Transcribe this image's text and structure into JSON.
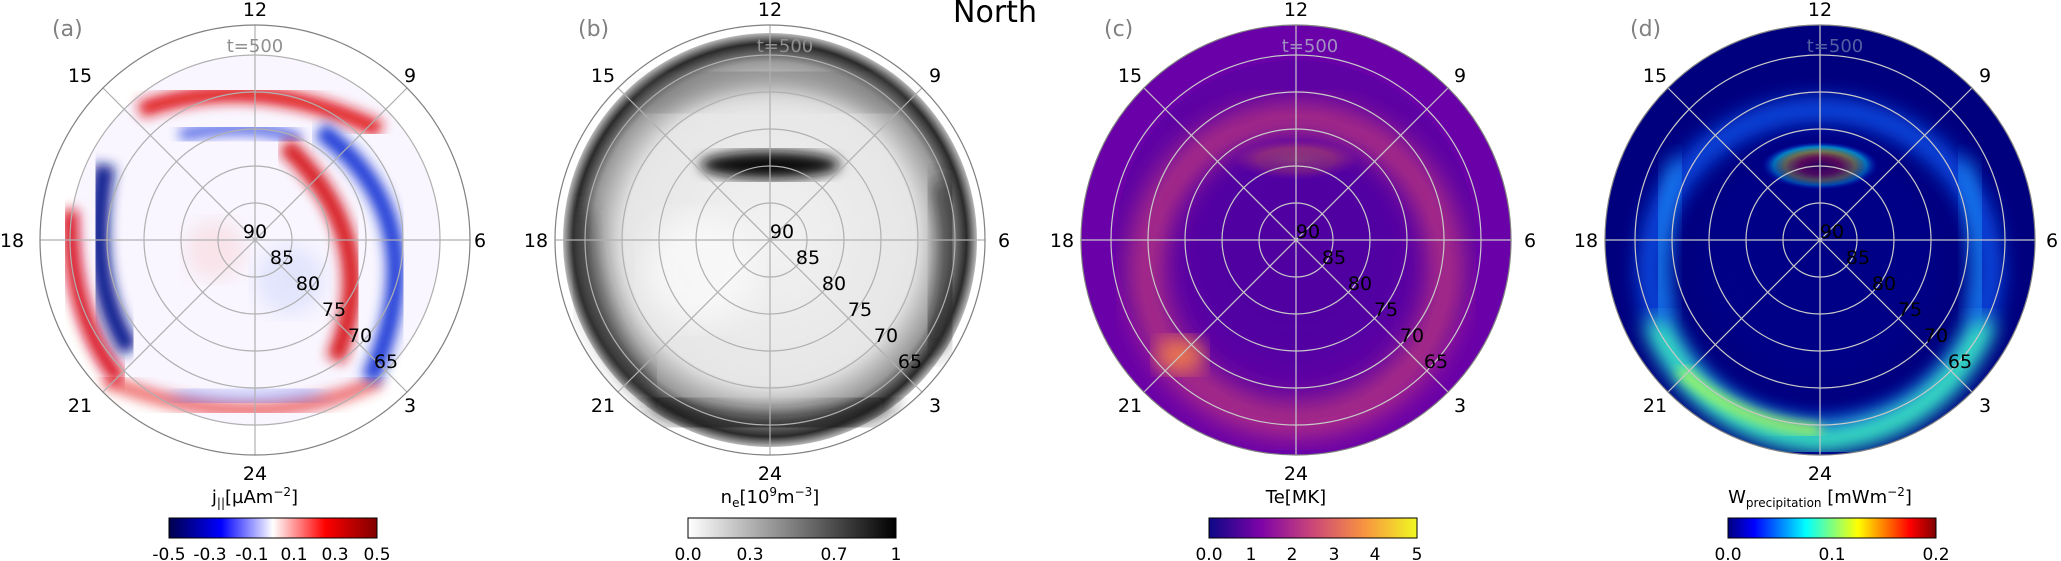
{
  "figure": {
    "title": "North"
  },
  "chart_data": [
    {
      "type": "heatmap",
      "projection": "polar",
      "panel_label": "(a)",
      "time_label": "t=500",
      "mlt_ticks": [
        "12",
        "9",
        "6",
        "3",
        "24",
        "21",
        "18",
        "15"
      ],
      "latitude_rings": [
        "90",
        "85",
        "80",
        "75",
        "70",
        "65"
      ],
      "colorbar": {
        "label": "j||[µAm−2]",
        "colormap": "seismic",
        "ticks": [
          "-0.5",
          "-0.3",
          "-0.1",
          "0.1",
          "0.3",
          "0.5"
        ],
        "range": [
          -0.5,
          0.5
        ]
      },
      "colors": {
        "low": "#00004c",
        "mid": "#ffffff",
        "high": "#800000"
      }
    },
    {
      "type": "heatmap",
      "projection": "polar",
      "panel_label": "(b)",
      "time_label": "t=500",
      "mlt_ticks": [
        "12",
        "9",
        "6",
        "3",
        "24",
        "21",
        "18",
        "15"
      ],
      "latitude_rings": [
        "90",
        "85",
        "80",
        "75",
        "70",
        "65"
      ],
      "colorbar": {
        "label": "ne[109m−3]",
        "colormap": "gray_r",
        "ticks": [
          "0.0",
          "0.3",
          "0.7",
          "1"
        ],
        "range": [
          0,
          1
        ]
      },
      "colors": {
        "low": "#ffffff",
        "high": "#000000"
      }
    },
    {
      "type": "heatmap",
      "projection": "polar",
      "panel_label": "(c)",
      "time_label": "t=500",
      "mlt_ticks": [
        "12",
        "9",
        "6",
        "3",
        "24",
        "21",
        "18",
        "15"
      ],
      "latitude_rings": [
        "90",
        "85",
        "80",
        "75",
        "70",
        "65"
      ],
      "colorbar": {
        "label": "Te[MK]",
        "colormap": "plasma",
        "ticks": [
          "0.0",
          "1",
          "2",
          "3",
          "4",
          "5"
        ],
        "range": [
          0,
          5
        ]
      },
      "colors": {
        "low": "#0d0887",
        "high": "#f0f921"
      }
    },
    {
      "type": "heatmap",
      "projection": "polar",
      "panel_label": "(d)",
      "time_label": "t=500",
      "mlt_ticks": [
        "12",
        "9",
        "6",
        "3",
        "24",
        "21",
        "18",
        "15"
      ],
      "latitude_rings": [
        "90",
        "85",
        "80",
        "75",
        "70",
        "65"
      ],
      "colorbar": {
        "label": "Wprecipitation[mWm−2]",
        "colormap": "jet",
        "ticks": [
          "0.0",
          "0.1",
          "0.2"
        ],
        "range": [
          0,
          0.2
        ]
      },
      "colors": {
        "low": "#00007f",
        "high": "#7f0000"
      }
    }
  ]
}
